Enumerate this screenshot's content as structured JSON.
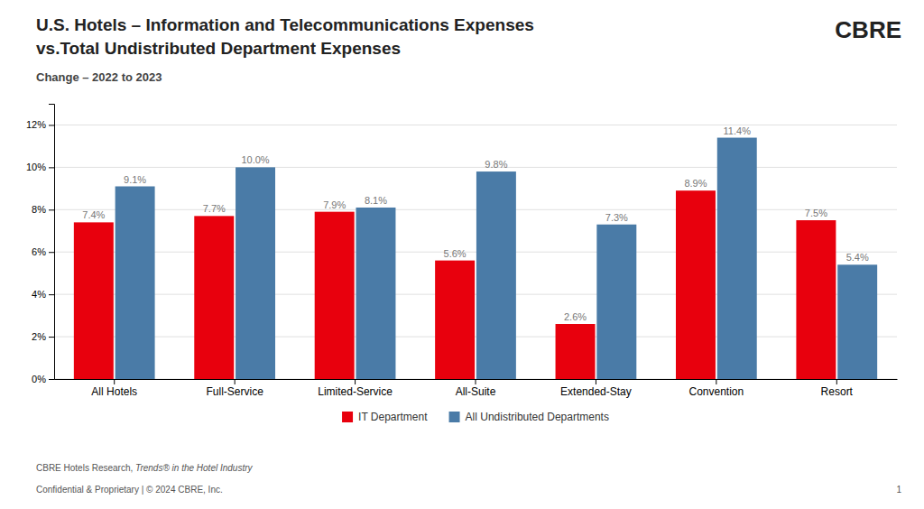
{
  "chart_data": {
    "type": "bar",
    "title": [
      "U.S. Hotels – Information and Telecommunications Expenses",
      "vs.Total Undistributed Department Expenses"
    ],
    "subtitle": "Change – 2022 to 2023",
    "categories": [
      "All Hotels",
      "Full-Service",
      "Limited-Service",
      "All-Suite",
      "Extended-Stay",
      "Convention",
      "Resort"
    ],
    "series": [
      {
        "name": "IT Department",
        "color": "#E8000D",
        "values": [
          0.074,
          0.077,
          0.079,
          0.056,
          0.026,
          0.089,
          0.075
        ],
        "value_labels": [
          "7.4%",
          "7.7%",
          "7.9%",
          "5.6%",
          "2.6%",
          "8.9%",
          "7.5%"
        ]
      },
      {
        "name": "All Undistributed Departments",
        "color": "#4A7BA7",
        "values": [
          0.091,
          0.1,
          0.081,
          0.098,
          0.073,
          0.114,
          0.054
        ],
        "value_labels": [
          "9.1%",
          "10.0%",
          "8.1%",
          "9.8%",
          "7.3%",
          "11.4%",
          "5.4%"
        ]
      }
    ],
    "ylim": [
      0,
      0.13
    ],
    "yticks": [
      {
        "value": 0,
        "label": "0%"
      },
      {
        "value": 0.02,
        "label": "2%"
      },
      {
        "value": 0.04,
        "label": "4%"
      },
      {
        "value": 0.06,
        "label": "6%"
      },
      {
        "value": 0.08,
        "label": "8%"
      },
      {
        "value": 0.1,
        "label": "10%"
      },
      {
        "value": 0.12,
        "label": "12%"
      }
    ],
    "grid": true,
    "legend": "bottom",
    "data_labels": true,
    "annotations": [
      "CBRE",
      "CBRE Hotels Research, ",
      "Trends® in the Hotel Industry",
      "Confidential & Proprietary | © 2024 CBRE, Inc.",
      "1"
    ]
  }
}
